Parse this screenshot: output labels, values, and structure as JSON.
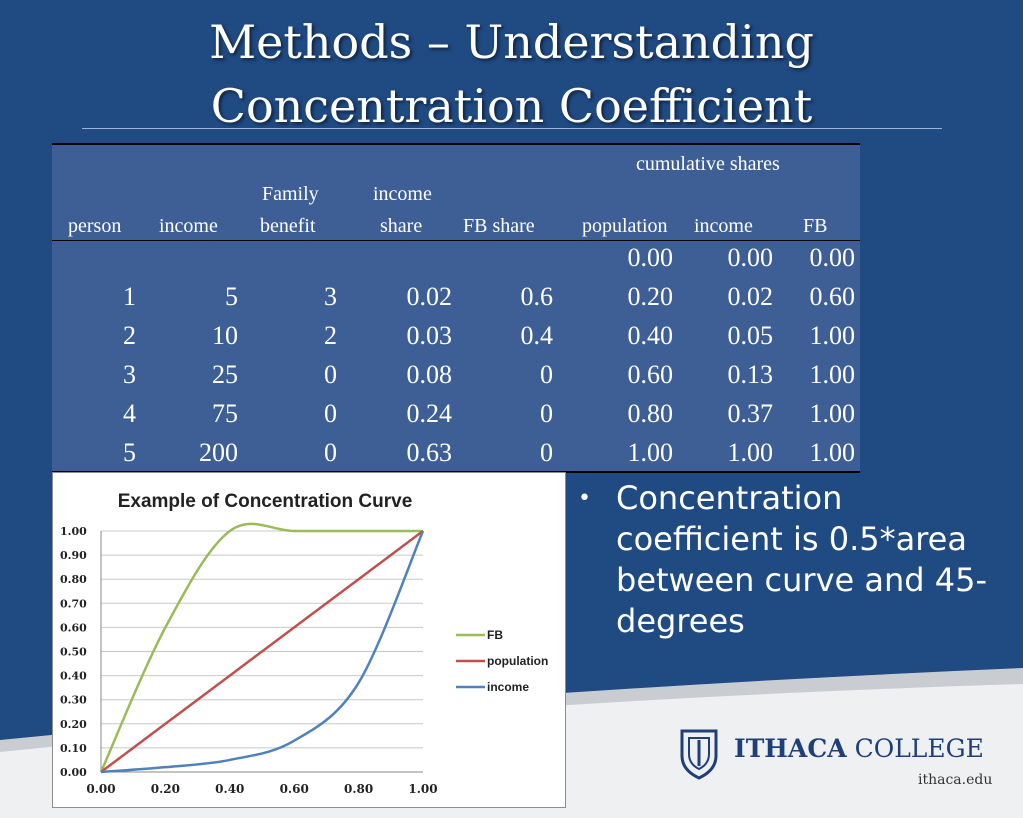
{
  "slide": {
    "title_line1": "Methods – Understanding",
    "title_line2": "Concentration Coefficient",
    "bullet_text": "Concentration coefficient is 0.5*area between curve and 45-degrees",
    "logo_text_bold": "ITHACA",
    "logo_text_rest": " COLLEGE",
    "logo_url": "ithaca.edu"
  },
  "table": {
    "group_header": "cumulative shares",
    "headers": {
      "person": "person",
      "income": "income",
      "fb_line1": "Family",
      "fb_line2": "benefit",
      "ishare_line1": "income",
      "ishare_line2": "share",
      "fb_share": "FB share",
      "cum_population": "population",
      "cum_income": "income",
      "cum_fb": "FB"
    },
    "rows": [
      [
        "",
        "",
        "",
        "",
        "",
        "0.00",
        "0.00",
        "0.00"
      ],
      [
        "1",
        "5",
        "3",
        "0.02",
        "0.6",
        "0.20",
        "0.02",
        "0.60"
      ],
      [
        "2",
        "10",
        "2",
        "0.03",
        "0.4",
        "0.40",
        "0.05",
        "1.00"
      ],
      [
        "3",
        "25",
        "0",
        "0.08",
        "0",
        "0.60",
        "0.13",
        "1.00"
      ],
      [
        "4",
        "75",
        "0",
        "0.24",
        "0",
        "0.80",
        "0.37",
        "1.00"
      ],
      [
        "5",
        "200",
        "0",
        "0.63",
        "0",
        "1.00",
        "1.00",
        "1.00"
      ]
    ]
  },
  "colors": {
    "background": "#1f4a82",
    "table_bg": "#3e5f96",
    "fb": "#9bbb59",
    "population": "#c0504d",
    "income": "#4f81bd"
  },
  "chart_data": {
    "type": "line",
    "title": "Example of Concentration Curve",
    "xlabel": "",
    "ylabel": "",
    "xlim": [
      0,
      1
    ],
    "ylim": [
      0,
      1
    ],
    "x_ticks": [
      "0.00",
      "0.20",
      "0.40",
      "0.60",
      "0.80",
      "1.00"
    ],
    "y_ticks": [
      "0.00",
      "0.10",
      "0.20",
      "0.30",
      "0.40",
      "0.50",
      "0.60",
      "0.70",
      "0.80",
      "0.90",
      "1.00"
    ],
    "grid": true,
    "legend_position": "right",
    "x": [
      0,
      0.2,
      0.4,
      0.6,
      0.8,
      1.0
    ],
    "series": [
      {
        "name": "FB",
        "values": [
          0.0,
          0.6,
          1.0,
          1.0,
          1.0,
          1.0
        ]
      },
      {
        "name": "population",
        "values": [
          0.0,
          0.2,
          0.4,
          0.6,
          0.8,
          1.0
        ]
      },
      {
        "name": "income",
        "values": [
          0.0,
          0.02,
          0.05,
          0.13,
          0.37,
          1.0
        ]
      }
    ]
  }
}
